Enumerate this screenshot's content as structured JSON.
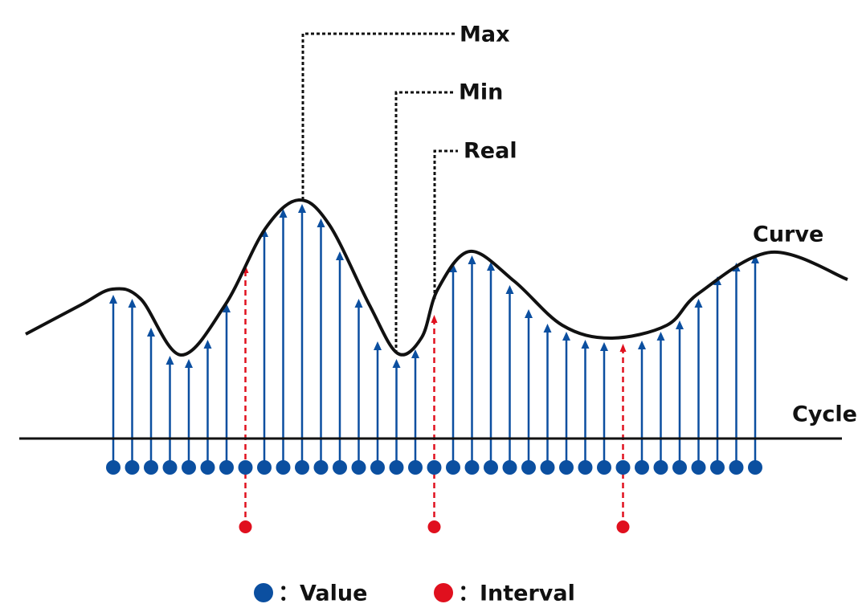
{
  "labels": {
    "max": "Max",
    "min": "Min",
    "real": "Real",
    "curve": "Curve",
    "cycle": "Cycle"
  },
  "legend": [
    {
      "label": "：Value"
    },
    {
      "label": "：Interval"
    }
  ]
}
